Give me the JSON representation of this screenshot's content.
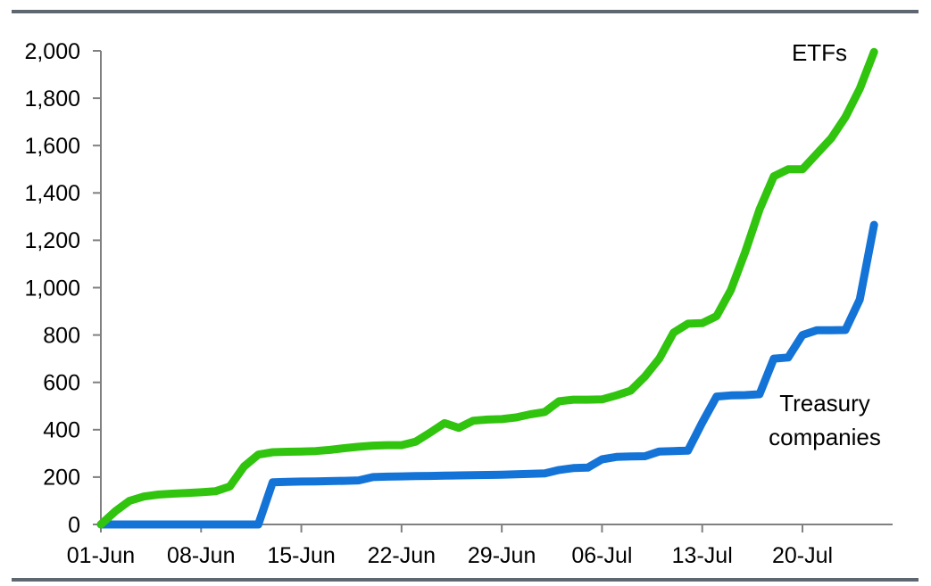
{
  "page": {
    "background": "#ffffff",
    "rule_color": "#5E6770",
    "axis_color": "#808080",
    "label_color": "#000000"
  },
  "chart_data": {
    "type": "line",
    "title": "",
    "xlabel": "",
    "ylabel": "",
    "grid": false,
    "legend_position": "inline-annotations",
    "ylim": [
      0,
      2000
    ],
    "y_tick_step": 200,
    "x_dates": [
      "01-Jun",
      "02-Jun",
      "03-Jun",
      "04-Jun",
      "05-Jun",
      "06-Jun",
      "07-Jun",
      "08-Jun",
      "09-Jun",
      "10-Jun",
      "11-Jun",
      "12-Jun",
      "13-Jun",
      "14-Jun",
      "15-Jun",
      "16-Jun",
      "17-Jun",
      "18-Jun",
      "19-Jun",
      "20-Jun",
      "21-Jun",
      "22-Jun",
      "23-Jun",
      "24-Jun",
      "25-Jun",
      "26-Jun",
      "27-Jun",
      "28-Jun",
      "29-Jun",
      "30-Jun",
      "01-Jul",
      "02-Jul",
      "03-Jul",
      "04-Jul",
      "05-Jul",
      "06-Jul",
      "07-Jul",
      "08-Jul",
      "09-Jul",
      "10-Jul",
      "11-Jul",
      "12-Jul",
      "13-Jul",
      "14-Jul",
      "15-Jul",
      "16-Jul",
      "17-Jul",
      "18-Jul",
      "19-Jul",
      "20-Jul",
      "21-Jul",
      "22-Jul",
      "23-Jul",
      "24-Jul",
      "25-Jul"
    ],
    "x_tick_labels": [
      "01-Jun",
      "08-Jun",
      "15-Jun",
      "22-Jun",
      "29-Jun",
      "06-Jul",
      "13-Jul",
      "20-Jul"
    ],
    "x_tick_indices": [
      0,
      7,
      14,
      21,
      28,
      35,
      42,
      49
    ],
    "series": [
      {
        "name": "Treasury companies",
        "color": "#1473D6",
        "values": [
          0,
          0,
          0,
          0,
          0,
          0,
          0,
          0,
          0,
          0,
          0,
          0,
          178,
          180,
          181,
          182,
          183,
          184,
          186,
          200,
          202,
          203,
          204,
          205,
          206,
          207,
          208,
          209,
          210,
          212,
          214,
          216,
          230,
          238,
          240,
          275,
          285,
          287,
          288,
          308,
          310,
          312,
          430,
          540,
          545,
          546,
          550,
          700,
          705,
          800,
          820,
          820,
          821,
          950,
          1265
        ]
      },
      {
        "name": "ETFs",
        "color": "#30C40E",
        "values": [
          0,
          55,
          100,
          118,
          126,
          130,
          133,
          136,
          140,
          160,
          245,
          295,
          305,
          307,
          308,
          310,
          315,
          322,
          328,
          333,
          335,
          335,
          350,
          388,
          428,
          408,
          438,
          443,
          445,
          452,
          465,
          475,
          520,
          527,
          527,
          528,
          545,
          565,
          625,
          700,
          810,
          848,
          850,
          880,
          990,
          1150,
          1330,
          1470,
          1500,
          1500,
          1565,
          1630,
          1720,
          1840,
          1995
        ]
      }
    ],
    "annotations": [
      {
        "series": "ETFs",
        "lines": [
          "ETFs"
        ],
        "color": "#000000"
      },
      {
        "series": "Treasury companies",
        "lines": [
          "Treasury",
          "companies"
        ],
        "color": "#000000"
      }
    ]
  }
}
